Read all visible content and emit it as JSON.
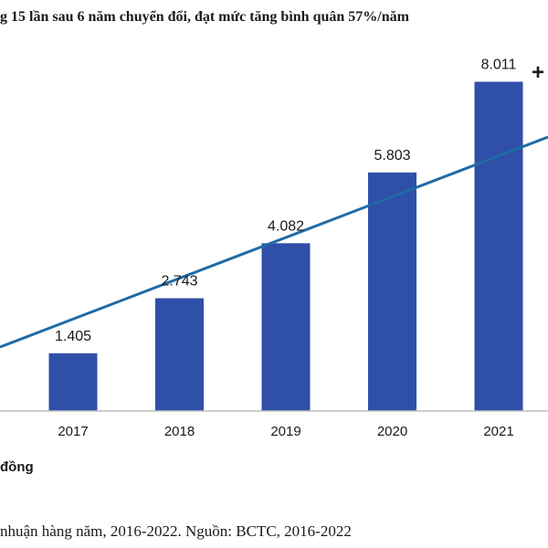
{
  "header": {
    "title": "g 15 lần sau 6 năm chuyển đổi, đạt mức tăng bình quân 57%/năm",
    "trend_label": "+"
  },
  "unit_label": "đồng",
  "caption": "nhuận hàng năm, 2016-2022. Nguồn: BCTC, 2016-2022",
  "chart_data": {
    "type": "bar",
    "title": "g 15 lần sau 6 năm chuyển đổi, đạt mức tăng bình quân 57%/năm",
    "categories": [
      "2017",
      "2018",
      "2019",
      "2020",
      "2021"
    ],
    "values": [
      1405,
      2743,
      4082,
      5803,
      8011
    ],
    "value_labels": [
      "1.405",
      "2.743",
      "4.082",
      "5.803",
      "8.011"
    ],
    "ylim": [
      0,
      9000
    ],
    "trend_line": {
      "color": "#1f6aa5"
    },
    "bar_color": "#2f4fa8",
    "grid": false
  }
}
